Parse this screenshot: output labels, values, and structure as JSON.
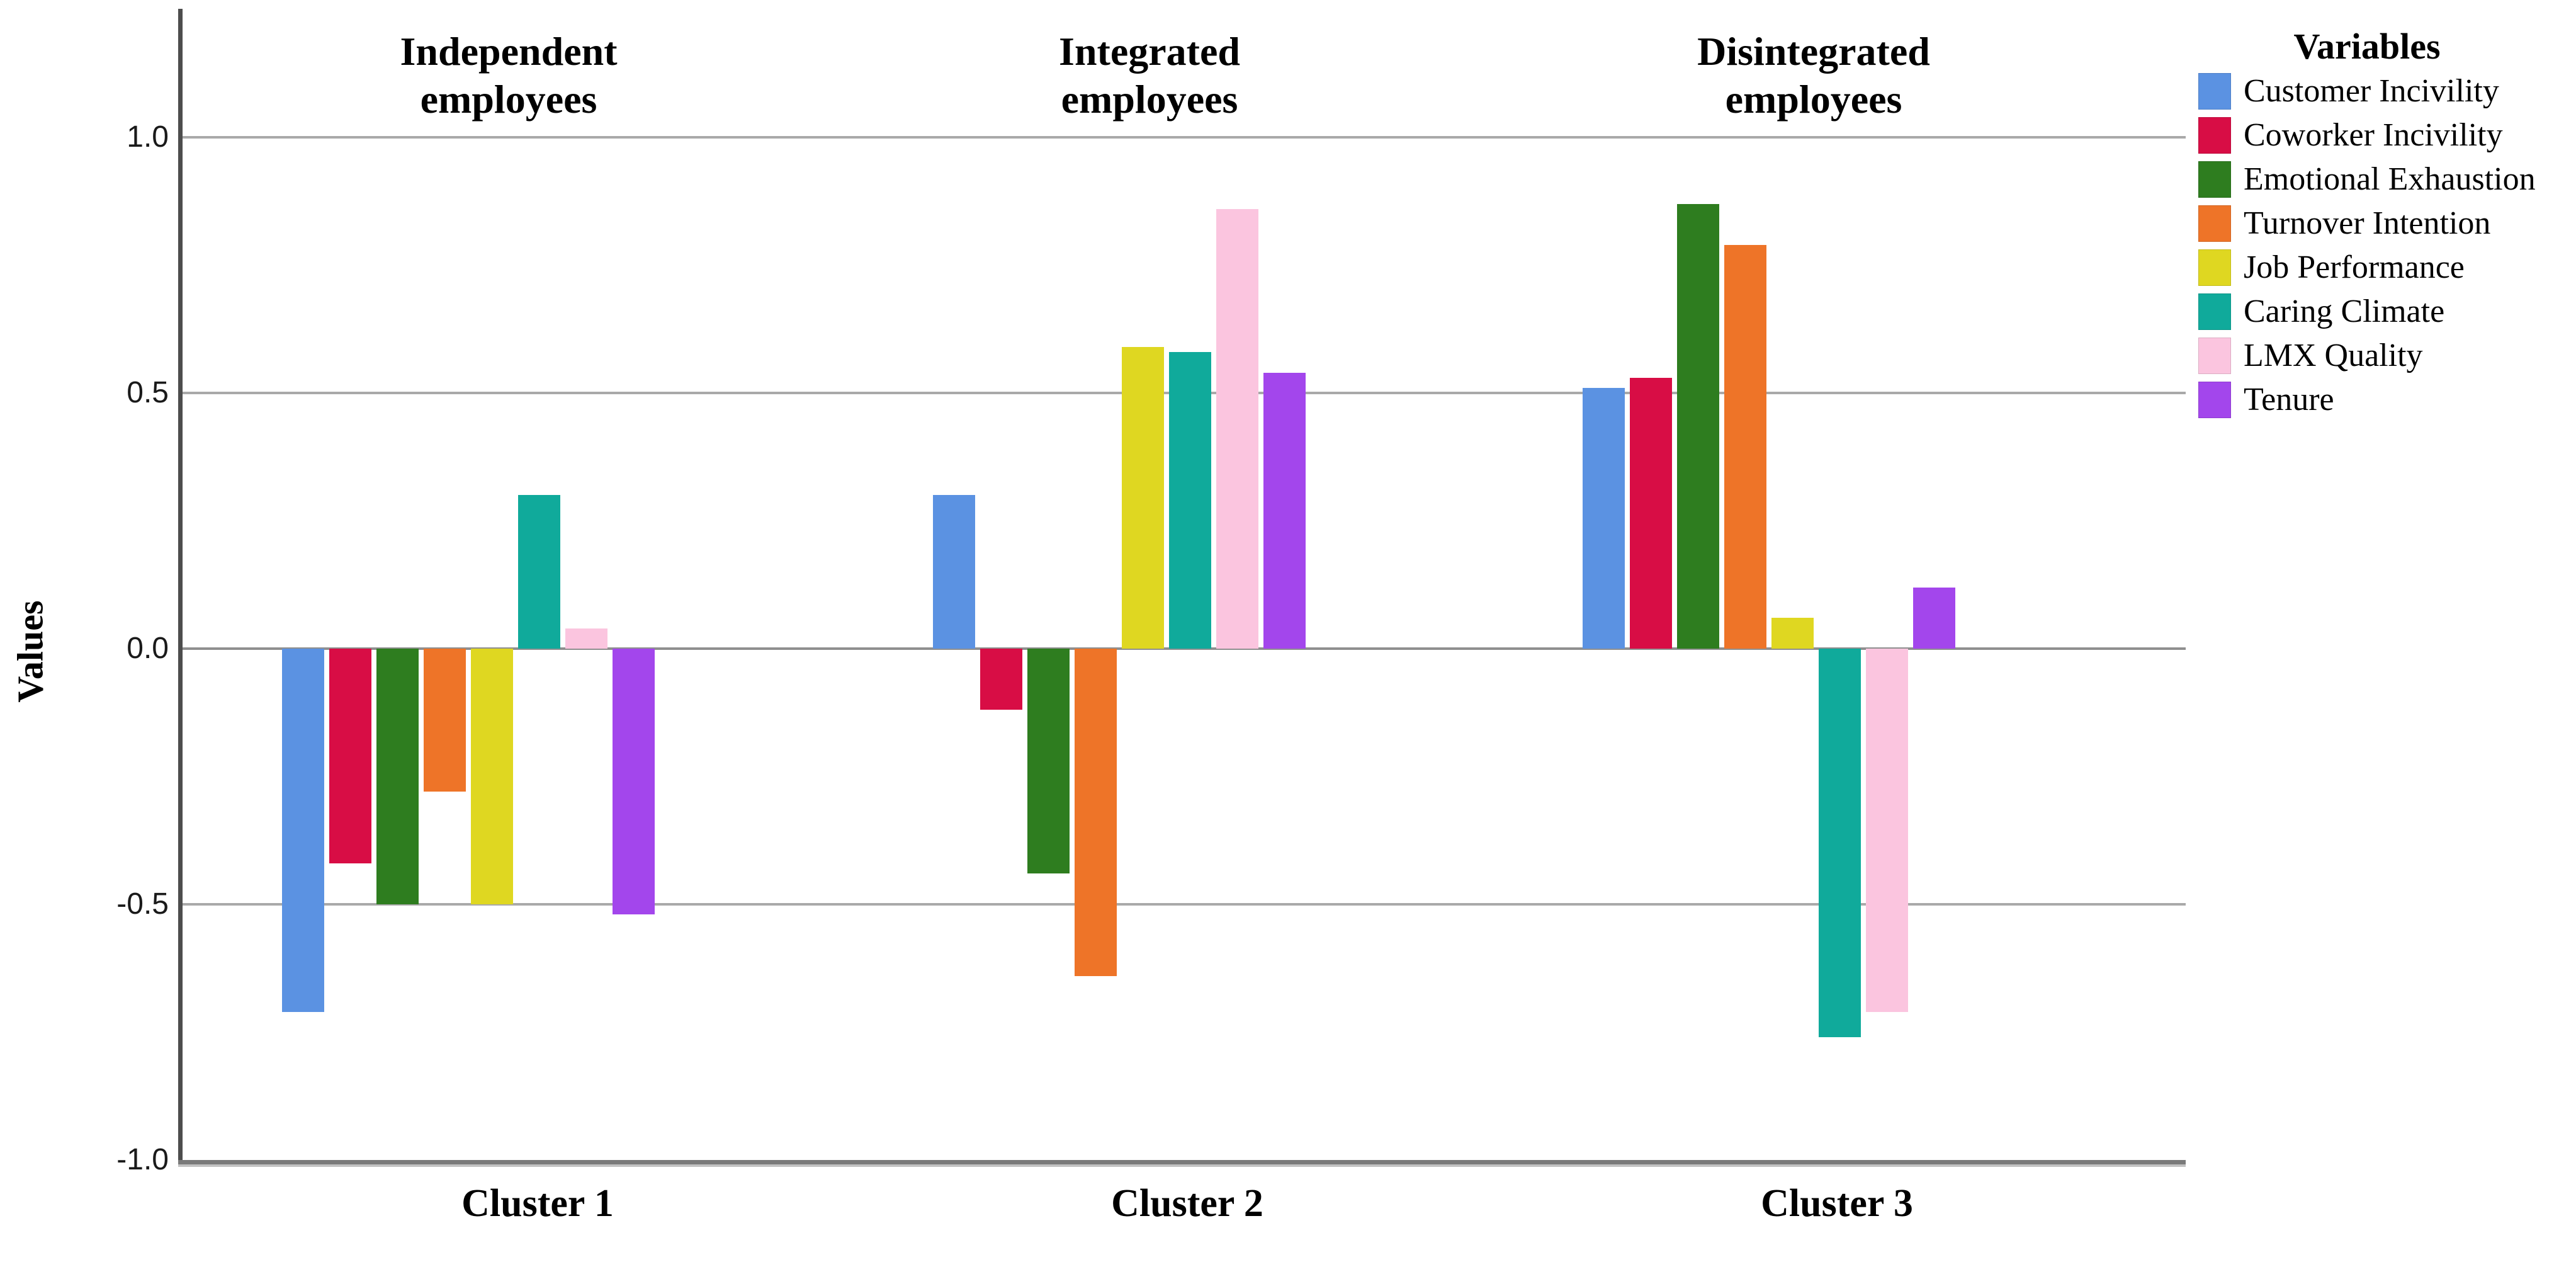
{
  "chart_data": {
    "type": "bar",
    "title": "",
    "ylabel": "Values",
    "xlabel": "",
    "ylim": [
      -1.0,
      1.2
    ],
    "grid": "horizontal",
    "legend_title": "Variables",
    "legend_position": "right",
    "categories": [
      "Cluster 1",
      "Cluster 2",
      "Cluster 3"
    ],
    "group_titles": [
      "Independent\nemployees",
      "Integrated\nemployees",
      "Disintegrated\nemployees"
    ],
    "yticks": [
      {
        "label": "1.0",
        "value": 1.0
      },
      {
        "label": "0.5",
        "value": 0.5
      },
      {
        "label": "0.0",
        "value": 0.0
      },
      {
        "label": "-0.5",
        "value": -0.5
      },
      {
        "label": "-1.0",
        "value": -1.0
      }
    ],
    "gridline_values": [
      1.0,
      0.5,
      0.0,
      -0.5
    ],
    "series": [
      {
        "name": "Customer Incivility",
        "color": "#5B92E2",
        "values": [
          -0.71,
          0.3,
          0.51
        ]
      },
      {
        "name": "Coworker Incivility",
        "color": "#D80D45",
        "values": [
          -0.42,
          -0.12,
          0.53
        ]
      },
      {
        "name": "Emotional Exhaustion",
        "color": "#2E7D1F",
        "values": [
          -0.5,
          -0.44,
          0.87
        ]
      },
      {
        "name": "Turnover Intention",
        "color": "#EE7428",
        "values": [
          -0.28,
          -0.64,
          0.79
        ]
      },
      {
        "name": "Job Performance",
        "color": "#DFD721",
        "values": [
          -0.5,
          0.59,
          0.06
        ]
      },
      {
        "name": "Caring Climate",
        "color": "#10AA9B",
        "values": [
          0.3,
          0.58,
          -0.76
        ]
      },
      {
        "name": "LMX Quality",
        "color": "#FBC5DF",
        "values": [
          0.04,
          0.86,
          -0.71
        ]
      },
      {
        "name": "Tenure",
        "color": "#A346EC",
        "values": [
          -0.52,
          0.54,
          0.12
        ]
      }
    ]
  },
  "colors": {
    "axis_line": "#4d4d4d",
    "baseline": "#7a7a7a",
    "gridline": "#a9a9a9",
    "text": "#000000"
  }
}
